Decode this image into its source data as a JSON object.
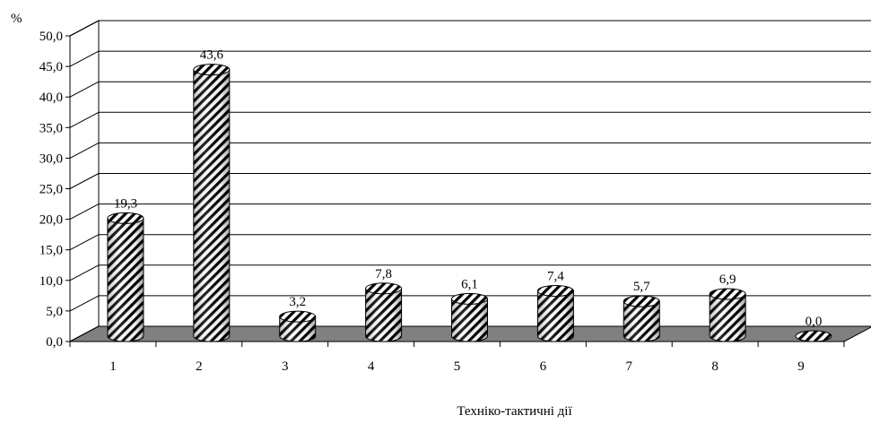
{
  "chart_data": {
    "type": "bar",
    "style": "3d-cylinder",
    "unit_label": "%",
    "xlabel": "Техніко-тактичні дії",
    "ylabel": "",
    "ylim": [
      0,
      50
    ],
    "y_ticks": [
      "0,0",
      "5,0",
      "10,0",
      "15,0",
      "20,0",
      "25,0",
      "30,0",
      "35,0",
      "40,0",
      "45,0",
      "50,0"
    ],
    "categories": [
      "1",
      "2",
      "3",
      "4",
      "5",
      "6",
      "7",
      "8",
      "9"
    ],
    "values": [
      19.3,
      43.6,
      3.2,
      7.8,
      6.1,
      7.4,
      5.7,
      6.9,
      0.0
    ],
    "value_labels": [
      "19,3",
      "43,6",
      "3,2",
      "7,8",
      "6,1",
      "7,4",
      "5,7",
      "6,9",
      "0,0"
    ],
    "grid": true,
    "legend": "none",
    "colors": {
      "floor": "#808080",
      "bar_fill": "#ffffff",
      "bar_hatch": "#000000"
    }
  }
}
